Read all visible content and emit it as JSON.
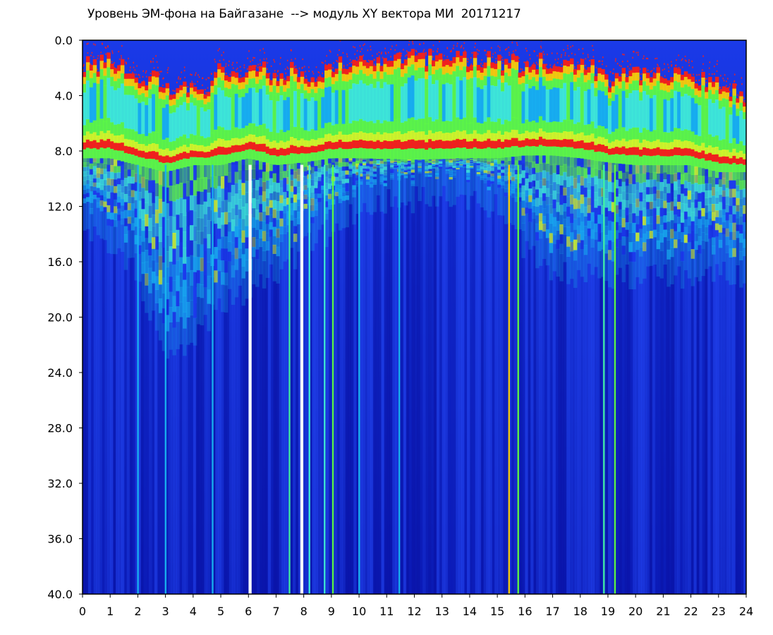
{
  "chart_data": {
    "type": "heatmap",
    "title": "Уровень ЭМ-фона на Байгазане  --> модуль XY вектора МИ  20171217",
    "xlabel": "",
    "ylabel": "",
    "xlim": [
      0,
      24
    ],
    "ylim": [
      0.0,
      40.0
    ],
    "y_inverted": true,
    "x_ticks": [
      "0",
      "1",
      "2",
      "3",
      "4",
      "5",
      "6",
      "7",
      "8",
      "9",
      "10",
      "11",
      "12",
      "13",
      "14",
      "15",
      "16",
      "17",
      "18",
      "19",
      "20",
      "21",
      "22",
      "23",
      "24"
    ],
    "y_ticks": [
      "0.0",
      "4.0",
      "8.0",
      "12.0",
      "16.0",
      "20.0",
      "24.0",
      "28.0",
      "32.0",
      "36.0",
      "40.0"
    ],
    "grid": false,
    "colormap": [
      "#0a14b4",
      "#1e3cf0",
      "#18b4f0",
      "#40f0d8",
      "#60ff40",
      "#d8ff20",
      "#ffd000",
      "#ff2010",
      "#ffffff"
    ],
    "upper_band_top": [
      [
        0,
        1.8
      ],
      [
        0.5,
        1.6
      ],
      [
        1,
        1.5
      ],
      [
        1.5,
        1.6
      ],
      [
        2,
        3.4
      ],
      [
        2.5,
        2.5
      ],
      [
        3,
        3.6
      ],
      [
        3.5,
        3.4
      ],
      [
        4,
        3.6
      ],
      [
        4.5,
        3.6
      ],
      [
        5,
        2.0
      ],
      [
        5.5,
        2.2
      ],
      [
        6,
        2.0
      ],
      [
        6.5,
        2.0
      ],
      [
        7,
        3.0
      ],
      [
        7.5,
        2.2
      ],
      [
        8,
        2.4
      ],
      [
        8.5,
        2.6
      ],
      [
        9,
        1.8
      ],
      [
        9.5,
        1.9
      ],
      [
        10,
        1.4
      ],
      [
        11,
        1.2
      ],
      [
        12,
        1.3
      ],
      [
        13,
        1.2
      ],
      [
        14,
        1.3
      ],
      [
        15,
        1.5
      ],
      [
        15.5,
        1.6
      ],
      [
        16,
        1.8
      ],
      [
        16.5,
        1.5
      ],
      [
        17,
        1.7
      ],
      [
        17.5,
        1.6
      ],
      [
        18,
        1.6
      ],
      [
        18.5,
        2.0
      ],
      [
        19,
        3.0
      ],
      [
        19.5,
        2.4
      ],
      [
        20,
        2.6
      ],
      [
        20.5,
        2.2
      ],
      [
        21,
        2.0
      ],
      [
        21.5,
        2.6
      ],
      [
        22,
        2.8
      ],
      [
        22.5,
        3.0
      ],
      [
        23,
        3.2
      ],
      [
        23.5,
        3.6
      ],
      [
        24,
        4.2
      ]
    ],
    "saturation_floor": [
      [
        0,
        8.5
      ],
      [
        1,
        8.5
      ],
      [
        2,
        9.0
      ],
      [
        3,
        9.5
      ],
      [
        4,
        9.0
      ],
      [
        5,
        9.0
      ],
      [
        6,
        8.5
      ],
      [
        7,
        9.0
      ],
      [
        8,
        8.8
      ],
      [
        9,
        8.5
      ],
      [
        10,
        8.5
      ],
      [
        12,
        8.6
      ],
      [
        14,
        8.5
      ],
      [
        15,
        8.5
      ],
      [
        16,
        8.3
      ],
      [
        17,
        8.3
      ],
      [
        18,
        8.5
      ],
      [
        19,
        8.8
      ],
      [
        20,
        9.0
      ],
      [
        21,
        9.0
      ],
      [
        22,
        9.0
      ],
      [
        23,
        9.5
      ],
      [
        24,
        9.5
      ]
    ],
    "disturbed_extent": [
      [
        0,
        11
      ],
      [
        1,
        13
      ],
      [
        2,
        15
      ],
      [
        3,
        20.5
      ],
      [
        4,
        20
      ],
      [
        5,
        17
      ],
      [
        6,
        16
      ],
      [
        7,
        15
      ],
      [
        8,
        13
      ],
      [
        9,
        12
      ],
      [
        10,
        10
      ],
      [
        12,
        9.5
      ],
      [
        14,
        9.5
      ],
      [
        15,
        10
      ],
      [
        16,
        13
      ],
      [
        17,
        15
      ],
      [
        18,
        15
      ],
      [
        19,
        15
      ],
      [
        20,
        15
      ],
      [
        21,
        15
      ],
      [
        22,
        15
      ],
      [
        23,
        15
      ],
      [
        24,
        15
      ]
    ],
    "vertical_streaks": [
      {
        "x": 6.03,
        "color": "#ffffff"
      },
      {
        "x": 6.08,
        "color": "#ffffff"
      },
      {
        "x": 7.48,
        "color": "#40f0a0"
      },
      {
        "x": 7.9,
        "color": "#ffffff"
      },
      {
        "x": 7.95,
        "color": "#ffffff"
      },
      {
        "x": 8.2,
        "color": "#40f0d8"
      },
      {
        "x": 8.75,
        "color": "#40f0d8"
      },
      {
        "x": 9.05,
        "color": "#60ff40"
      },
      {
        "x": 10.0,
        "color": "#18b4f0"
      },
      {
        "x": 11.45,
        "color": "#18b4f0"
      },
      {
        "x": 15.42,
        "color": "#ffd000"
      },
      {
        "x": 15.75,
        "color": "#60ff40"
      },
      {
        "x": 18.85,
        "color": "#40f0a0"
      },
      {
        "x": 19.25,
        "color": "#60ff40"
      },
      {
        "x": 3.0,
        "color": "#18b4f0"
      },
      {
        "x": 4.7,
        "color": "#18b4f0"
      },
      {
        "x": 2.0,
        "color": "#18b4f0"
      }
    ]
  }
}
